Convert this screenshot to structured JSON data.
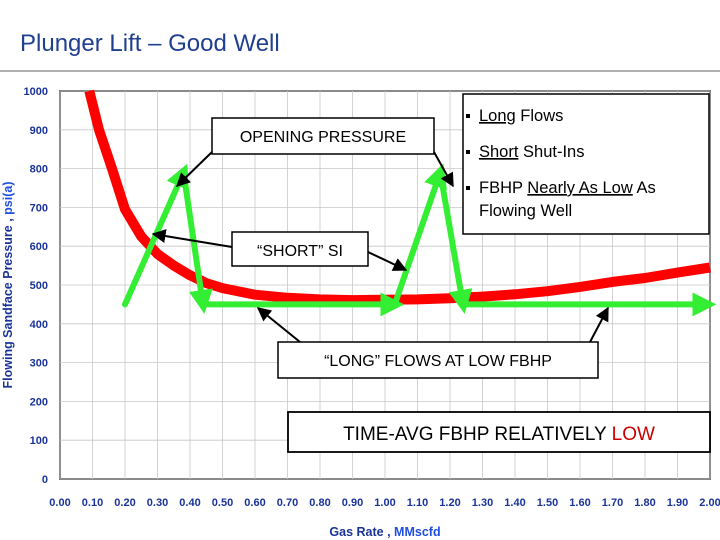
{
  "slide": {
    "title": "Plunger Lift – Good Well"
  },
  "chart_data": {
    "type": "line",
    "title": "",
    "xlabel": "Gas Rate , MMscfd",
    "xlabel_parts": [
      "Gas Rate , ",
      "MMscfd"
    ],
    "ylabel": "Flowing Sandface Pressure , psi(a)",
    "ylabel_parts": [
      "Flowing Sandface Pressure , ",
      "psi(a)"
    ],
    "xlim": [
      0,
      2
    ],
    "ylim": [
      0,
      1000
    ],
    "x_ticks": [
      "0.00",
      "0.10",
      "0.20",
      "0.30",
      "0.40",
      "0.50",
      "0.60",
      "0.70",
      "0.80",
      "0.90",
      "1.00",
      "1.10",
      "1.20",
      "1.30",
      "1.40",
      "1.50",
      "1.60",
      "1.70",
      "1.80",
      "1.90",
      "2.00"
    ],
    "y_ticks": [
      "0",
      "100",
      "200",
      "300",
      "400",
      "500",
      "600",
      "700",
      "800",
      "900",
      "1000"
    ],
    "grid": true,
    "colors": {
      "curve": "#ff0000",
      "cycle": "#33ee33",
      "arrow": "#000000",
      "axis_text": "#1a3399",
      "accent": "#cc0000"
    },
    "series": [
      {
        "x": [
          0.09,
          0.12,
          0.16,
          0.2,
          0.25,
          0.3,
          0.35,
          0.4,
          0.45,
          0.5,
          0.6,
          0.7,
          0.8,
          0.9,
          1.0,
          1.1,
          1.2,
          1.3,
          1.4,
          1.5,
          1.6,
          1.7,
          1.8,
          1.9,
          2.0
        ],
        "y": [
          1000,
          900,
          800,
          695,
          625,
          580,
          550,
          525,
          505,
          492,
          475,
          467,
          463,
          461,
          462,
          463,
          466,
          470,
          476,
          484,
          495,
          508,
          518,
          532,
          545
        ]
      }
    ],
    "cycle_path": {
      "x": [
        0.2,
        0.38,
        0.44,
        1.03,
        1.17,
        1.24,
        1.99
      ],
      "y": [
        450,
        790,
        450,
        450,
        790,
        450,
        450
      ]
    },
    "annotations": {
      "opening_pressure": "OPENING PRESSURE",
      "short_si": "“SHORT” SI",
      "long_flows": "“LONG” FLOWS AT LOW FBHP",
      "time_avg_prefix": "TIME-AVG FBHP RELATIVELY ",
      "time_avg_accent": "LOW",
      "bullets": [
        [
          {
            "t": "Long",
            "u": true
          },
          {
            "t": " Flows",
            "u": false
          }
        ],
        [
          {
            "t": "Short",
            "u": true
          },
          {
            "t": " Shut-Ins",
            "u": false
          }
        ],
        [
          {
            "t": "FBHP ",
            "u": false
          },
          {
            "t": "Nearly As Low",
            "u": true
          },
          {
            "t": " As",
            "u": false
          }
        ],
        [
          {
            "t": "Flowing Well",
            "u": false
          }
        ]
      ]
    }
  }
}
